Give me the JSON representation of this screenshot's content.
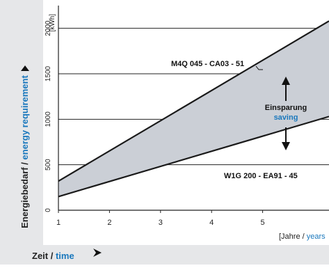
{
  "chart_data": {
    "type": "area",
    "ylabel": {
      "prefix": "Energiebedarf / ",
      "colored": "energy requirement"
    },
    "y_unit": "[kWh]",
    "xlabel": {
      "prefix": "Zeit / ",
      "colored": "time"
    },
    "x_unit": {
      "prefix": "[Jahre / ",
      "colored": "years"
    },
    "xlim": [
      1,
      6.3
    ],
    "ylim": [
      0,
      2250
    ],
    "x_ticks": [
      1,
      2,
      3,
      4,
      5
    ],
    "y_ticks": [
      0,
      500,
      1000,
      1500,
      2000
    ],
    "grid": "horizontal",
    "series": [
      {
        "name": "M4Q 045 - CA03 - 51",
        "x": [
          1,
          6.3
        ],
        "y": [
          320,
          2080
        ]
      },
      {
        "name": "W1G 200 - EA91 - 45",
        "x": [
          1,
          6.3
        ],
        "y": [
          150,
          1030
        ]
      }
    ],
    "annotations": {
      "saving_de": "Einsparung",
      "saving_en": "saving"
    },
    "colors": {
      "band_fill": "#cbcfd6",
      "panel_bg": "#e6e7e9",
      "accent_blue": "#1a78bd",
      "line": "#1a1a1a"
    }
  }
}
